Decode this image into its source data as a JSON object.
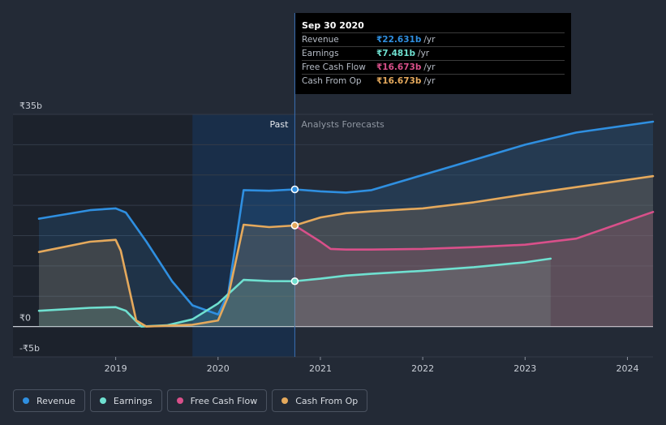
{
  "tooltip": {
    "date": "Sep 30 2020",
    "rows": [
      {
        "label": "Revenue",
        "value": "₹22.631b",
        "unit": "/yr",
        "color": "#2f8fe0"
      },
      {
        "label": "Earnings",
        "value": "₹7.481b",
        "unit": "/yr",
        "color": "#6fe0d0"
      },
      {
        "label": "Free Cash Flow",
        "value": "₹16.673b",
        "unit": "/yr",
        "color": "#d9508a"
      },
      {
        "label": "Cash From Op",
        "value": "₹16.673b",
        "unit": "/yr",
        "color": "#e5a95c"
      }
    ]
  },
  "legend": [
    {
      "label": "Revenue",
      "color": "#2f8fe0"
    },
    {
      "label": "Earnings",
      "color": "#6fe0d0"
    },
    {
      "label": "Free Cash Flow",
      "color": "#d9508a"
    },
    {
      "label": "Cash From Op",
      "color": "#e5a95c"
    }
  ],
  "chart_data": {
    "type": "line",
    "y_tick_labels": [
      "₹35b",
      "₹0",
      "-₹5b"
    ],
    "x_tick_labels": [
      "2019",
      "2020",
      "2021",
      "2022",
      "2023",
      "2024"
    ],
    "ylim": [
      -5,
      35
    ],
    "xlim": [
      2018.25,
      2024.25
    ],
    "past_label": "Past",
    "forecast_label": "Analysts Forecasts",
    "divider_x": 2020.75,
    "past_region_start": 2019.75,
    "marker_x": 2020.75,
    "series": [
      {
        "name": "Revenue",
        "color": "#2f8fe0",
        "points": [
          [
            2018.25,
            17.8
          ],
          [
            2018.75,
            19.2
          ],
          [
            2019.0,
            19.5
          ],
          [
            2019.1,
            18.8
          ],
          [
            2019.3,
            14.0
          ],
          [
            2019.55,
            7.5
          ],
          [
            2019.75,
            3.5
          ],
          [
            2020.0,
            2.0
          ],
          [
            2020.1,
            5.5
          ],
          [
            2020.25,
            22.5
          ],
          [
            2020.5,
            22.4
          ],
          [
            2020.75,
            22.631
          ],
          [
            2021.0,
            22.3
          ],
          [
            2021.25,
            22.1
          ],
          [
            2021.5,
            22.5
          ],
          [
            2022.0,
            25.0
          ],
          [
            2022.5,
            27.5
          ],
          [
            2023.0,
            30.0
          ],
          [
            2023.5,
            32.0
          ],
          [
            2024.25,
            33.8
          ]
        ]
      },
      {
        "name": "Earnings",
        "color": "#6fe0d0",
        "points": [
          [
            2018.25,
            2.6
          ],
          [
            2018.75,
            3.1
          ],
          [
            2019.0,
            3.2
          ],
          [
            2019.1,
            2.6
          ],
          [
            2019.25,
            0.0
          ],
          [
            2019.5,
            0.2
          ],
          [
            2019.75,
            1.2
          ],
          [
            2020.0,
            3.8
          ],
          [
            2020.25,
            7.7
          ],
          [
            2020.5,
            7.5
          ],
          [
            2020.75,
            7.481
          ],
          [
            2021.0,
            7.9
          ],
          [
            2021.25,
            8.4
          ],
          [
            2021.5,
            8.7
          ],
          [
            2022.0,
            9.2
          ],
          [
            2022.5,
            9.8
          ],
          [
            2023.0,
            10.6
          ],
          [
            2023.25,
            11.2
          ]
        ]
      },
      {
        "name": "Free Cash Flow",
        "color": "#d9508a",
        "points": [
          [
            2020.75,
            16.673
          ],
          [
            2021.0,
            14.0
          ],
          [
            2021.1,
            12.8
          ],
          [
            2021.25,
            12.7
          ],
          [
            2021.5,
            12.7
          ],
          [
            2022.0,
            12.8
          ],
          [
            2022.5,
            13.1
          ],
          [
            2023.0,
            13.5
          ],
          [
            2023.5,
            14.5
          ],
          [
            2024.25,
            18.9
          ]
        ]
      },
      {
        "name": "Cash From Op",
        "color": "#e5a95c",
        "points": [
          [
            2018.25,
            12.3
          ],
          [
            2018.75,
            14.0
          ],
          [
            2019.0,
            14.3
          ],
          [
            2019.05,
            12.5
          ],
          [
            2019.2,
            1.0
          ],
          [
            2019.3,
            0.0
          ],
          [
            2019.75,
            0.3
          ],
          [
            2020.0,
            1.0
          ],
          [
            2020.1,
            5.0
          ],
          [
            2020.25,
            16.8
          ],
          [
            2020.5,
            16.4
          ],
          [
            2020.75,
            16.673
          ],
          [
            2021.0,
            18.0
          ],
          [
            2021.25,
            18.7
          ],
          [
            2021.5,
            19.0
          ],
          [
            2022.0,
            19.5
          ],
          [
            2022.5,
            20.5
          ],
          [
            2023.0,
            21.8
          ],
          [
            2023.5,
            23.0
          ],
          [
            2024.25,
            24.8
          ]
        ]
      }
    ]
  }
}
